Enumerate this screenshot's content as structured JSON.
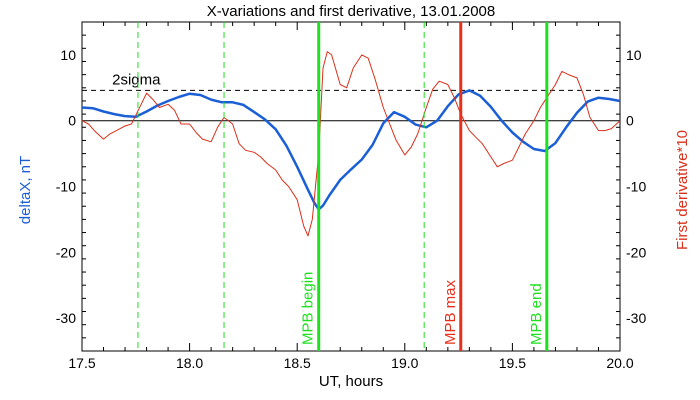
{
  "chart_data": {
    "type": "line",
    "title": "X-variations and first derivative, 13.01.2008",
    "xlabel": "UT, hours",
    "ylabel_left": "deltaX, nT",
    "ylabel_right": "First derivative*10",
    "xlim": [
      17.5,
      20.0
    ],
    "ylim": [
      -35,
      15
    ],
    "x_ticks": [
      17.5,
      18.0,
      18.5,
      19.0,
      19.5,
      20.0
    ],
    "x_tick_labels": [
      "17.5",
      "18.0",
      "18.5",
      "19.0",
      "19.5",
      "20.0"
    ],
    "y_ticks": [
      10,
      0,
      -10,
      -20,
      -30
    ],
    "y_tick_labels": [
      "10",
      "0",
      "-10",
      "-20",
      "-30"
    ],
    "grid": false,
    "sigma_level": 4.6,
    "sigma_label": "2sigma",
    "colors": {
      "deltaX": "#1a5fd6",
      "derivative": "#d9301a",
      "mpb_green": "#1ee01e",
      "mpb_red": "#e8301a",
      "axis": "#000000"
    },
    "markers": [
      {
        "x": 17.76,
        "style": "dashed",
        "color": "green",
        "label": ""
      },
      {
        "x": 18.16,
        "style": "dashed",
        "color": "green",
        "label": ""
      },
      {
        "x": 18.6,
        "style": "solid",
        "color": "green",
        "label": "MPB begin"
      },
      {
        "x": 19.09,
        "style": "dashed",
        "color": "green",
        "label": ""
      },
      {
        "x": 19.26,
        "style": "solid",
        "color": "red",
        "label": "MPB max"
      },
      {
        "x": 19.66,
        "style": "solid",
        "color": "green",
        "label": "MPB end"
      }
    ],
    "series": [
      {
        "name": "deltaX, nT",
        "axis": "left",
        "x": [
          17.5,
          17.55,
          17.6,
          17.65,
          17.7,
          17.75,
          17.8,
          17.85,
          17.9,
          17.95,
          18.0,
          18.05,
          18.1,
          18.15,
          18.2,
          18.25,
          18.3,
          18.35,
          18.4,
          18.45,
          18.5,
          18.55,
          18.58,
          18.6,
          18.62,
          18.65,
          18.7,
          18.75,
          18.8,
          18.85,
          18.9,
          18.95,
          19.0,
          19.05,
          19.1,
          19.15,
          19.2,
          19.25,
          19.3,
          19.35,
          19.4,
          19.45,
          19.5,
          19.55,
          19.6,
          19.65,
          19.7,
          19.75,
          19.8,
          19.85,
          19.9,
          19.95,
          20.0
        ],
        "y": [
          2.0,
          1.9,
          1.4,
          1.0,
          0.7,
          0.6,
          1.4,
          2.3,
          3.0,
          3.6,
          4.1,
          3.9,
          3.2,
          2.8,
          2.8,
          2.4,
          1.3,
          0.2,
          -1.3,
          -3.8,
          -7.0,
          -10.5,
          -12.5,
          -13.5,
          -12.9,
          -11.3,
          -9.0,
          -7.4,
          -5.9,
          -3.7,
          -0.4,
          1.3,
          0.6,
          -0.6,
          -1.0,
          0.0,
          2.2,
          4.0,
          4.6,
          3.8,
          2.1,
          0.0,
          -1.8,
          -3.2,
          -4.3,
          -4.6,
          -3.4,
          -1.0,
          1.2,
          2.9,
          3.5,
          3.3,
          3.0
        ]
      },
      {
        "name": "First derivative*10",
        "axis": "right",
        "x": [
          17.5,
          17.53,
          17.56,
          17.6,
          17.63,
          17.66,
          17.7,
          17.73,
          17.76,
          17.8,
          17.83,
          17.86,
          17.9,
          17.93,
          17.96,
          18.0,
          18.03,
          18.06,
          18.1,
          18.13,
          18.16,
          18.2,
          18.23,
          18.26,
          18.3,
          18.33,
          18.36,
          18.4,
          18.43,
          18.46,
          18.5,
          18.53,
          18.55,
          18.57,
          18.6,
          18.62,
          18.64,
          18.66,
          18.7,
          18.73,
          18.76,
          18.8,
          18.83,
          18.86,
          18.9,
          18.93,
          18.96,
          19.0,
          19.03,
          19.06,
          19.1,
          19.13,
          19.16,
          19.2,
          19.23,
          19.26,
          19.3,
          19.33,
          19.36,
          19.4,
          19.43,
          19.46,
          19.5,
          19.53,
          19.56,
          19.6,
          19.63,
          19.66,
          19.7,
          19.73,
          19.76,
          19.8,
          19.83,
          19.86,
          19.9,
          19.93,
          19.96,
          20.0
        ],
        "y": [
          0.0,
          -0.5,
          -1.6,
          -2.8,
          -2.0,
          -1.5,
          -0.8,
          -0.5,
          1.5,
          4.2,
          3.2,
          2.0,
          2.5,
          1.6,
          -0.5,
          -0.5,
          -1.8,
          -2.8,
          -3.2,
          -1.0,
          0.5,
          -0.5,
          -3.5,
          -4.5,
          -4.8,
          -5.5,
          -6.5,
          -7.5,
          -9.0,
          -10.0,
          -12.0,
          -16.0,
          -17.5,
          -15.0,
          -5.0,
          8.0,
          10.5,
          10.0,
          5.5,
          5.0,
          8.0,
          10.0,
          9.5,
          6.5,
          2.0,
          -0.5,
          -3.0,
          -5.2,
          -4.0,
          -2.0,
          2.0,
          4.8,
          6.0,
          5.5,
          3.5,
          1.0,
          -1.5,
          -2.5,
          -3.5,
          -5.5,
          -7.0,
          -6.5,
          -6.0,
          -4.0,
          -2.0,
          0.0,
          2.0,
          3.5,
          5.5,
          7.5,
          7.0,
          6.5,
          4.0,
          0.5,
          -1.5,
          -1.5,
          -1.2,
          0.0
        ]
      }
    ]
  }
}
